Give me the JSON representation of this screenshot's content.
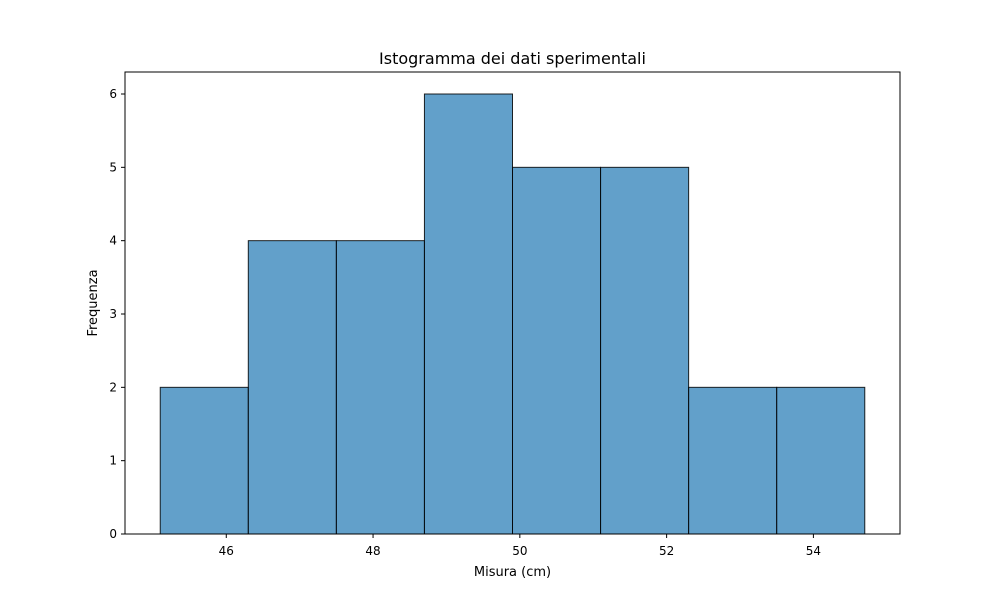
{
  "chart_data": {
    "type": "bar",
    "subtype": "histogram",
    "title": "Istogramma dei dati sperimentali",
    "xlabel": "Misura (cm)",
    "ylabel": "Frequenza",
    "bin_edges": [
      45.1,
      46.3,
      47.5,
      48.7,
      49.9,
      51.1,
      52.3,
      53.5,
      54.7
    ],
    "values": [
      2,
      4,
      4,
      6,
      5,
      5,
      2,
      2
    ],
    "xlim": [
      44.62,
      55.18
    ],
    "ylim": [
      0,
      6.3
    ],
    "x_ticks": [
      46,
      48,
      50,
      52,
      54
    ],
    "y_ticks": [
      0,
      1,
      2,
      3,
      4,
      5,
      6
    ],
    "grid": false,
    "legend": "none",
    "colors": {
      "bar_fill": "#1f77b4",
      "bar_fill_opacity": 0.7,
      "bar_edge": "#000000"
    }
  }
}
